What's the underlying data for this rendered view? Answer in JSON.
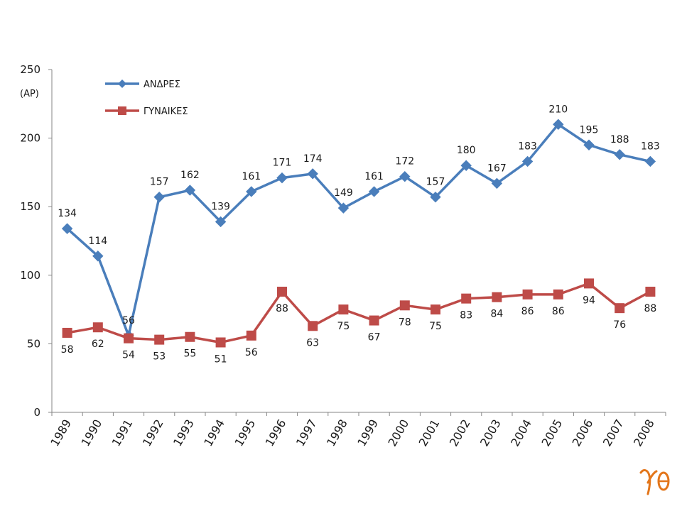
{
  "chart_data": {
    "type": "line",
    "title": "",
    "ylabel": "(ΑΡ)",
    "xlabel": "",
    "ylim": [
      0,
      250
    ],
    "yticks": [
      0,
      50,
      100,
      150,
      200,
      250
    ],
    "categories": [
      "1989",
      "1990",
      "1991",
      "1992",
      "1993",
      "1994",
      "1995",
      "1996",
      "1997",
      "1998",
      "1999",
      "2000",
      "2001",
      "2002",
      "2003",
      "2004",
      "2005",
      "2006",
      "2007",
      "2008"
    ],
    "series": [
      {
        "name": "ΑΝΔΡΕΣ",
        "color": "#4a7ebb",
        "marker": "diamond",
        "label_position": "above",
        "values": [
          134,
          114,
          56,
          157,
          162,
          139,
          161,
          171,
          174,
          149,
          161,
          172,
          157,
          180,
          167,
          183,
          210,
          195,
          188,
          183
        ]
      },
      {
        "name": "ΓΥΝΑΙΚΕΣ",
        "color": "#be4b48",
        "marker": "square",
        "label_position": "below",
        "values": [
          58,
          62,
          54,
          53,
          55,
          51,
          56,
          88,
          63,
          75,
          67,
          78,
          75,
          83,
          84,
          86,
          86,
          94,
          76,
          88
        ]
      }
    ],
    "legend": "top-left",
    "grid": false
  },
  "logo": {
    "icon": "gamma-theta-logo-icon",
    "text": "γθ",
    "color": "#e3761b"
  }
}
